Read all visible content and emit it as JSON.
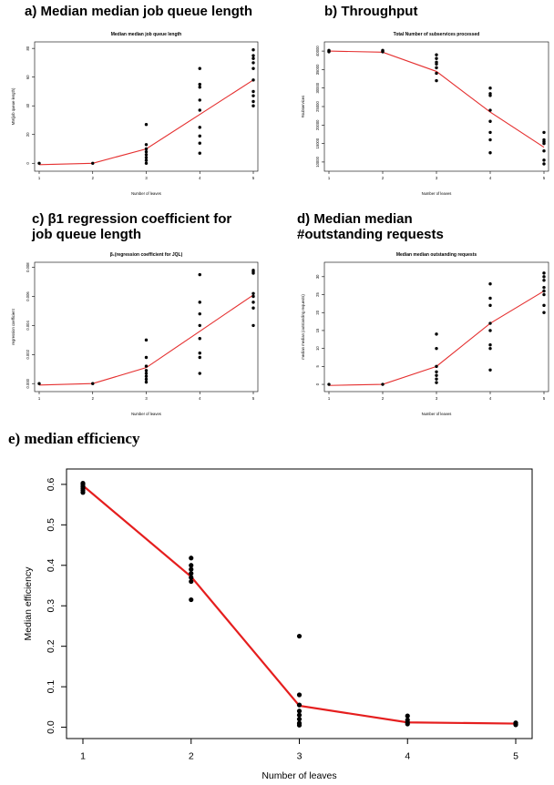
{
  "panel_headings": {
    "a": "a) Median median job queue length",
    "b": "b) Throughput",
    "c": "c) β1 regression coefficient for\njob queue length",
    "d": "d) Median median\n#outstanding requests",
    "e": "e) median efficiency"
  },
  "chart_data": [
    {
      "id": "a",
      "type": "scatter",
      "title": "Median median job queue length",
      "xlabel": "Number of leaves",
      "ylabel": "MM(job queue length)",
      "xlim": [
        1,
        5
      ],
      "ylim": [
        -3,
        82
      ],
      "xticks": [
        1,
        2,
        3,
        4,
        5
      ],
      "yticks": [
        0,
        20,
        40,
        60,
        80
      ],
      "points": [
        [
          1,
          0
        ],
        [
          2,
          0
        ],
        [
          3,
          0
        ],
        [
          3,
          2
        ],
        [
          3,
          4
        ],
        [
          3,
          6
        ],
        [
          3,
          8
        ],
        [
          3,
          10
        ],
        [
          3,
          13
        ],
        [
          3,
          27
        ],
        [
          4,
          7
        ],
        [
          4,
          14
        ],
        [
          4,
          19
        ],
        [
          4,
          25
        ],
        [
          4,
          37
        ],
        [
          4,
          44
        ],
        [
          4,
          53
        ],
        [
          4,
          55
        ],
        [
          4,
          66
        ],
        [
          5,
          40
        ],
        [
          5,
          43
        ],
        [
          5,
          47
        ],
        [
          5,
          50
        ],
        [
          5,
          58
        ],
        [
          5,
          66
        ],
        [
          5,
          70
        ],
        [
          5,
          73
        ],
        [
          5,
          75
        ],
        [
          5,
          79
        ]
      ],
      "fit_line": {
        "x": [
          1,
          2,
          3,
          4,
          5
        ],
        "y": [
          -1,
          0,
          10,
          34,
          58
        ]
      },
      "line_color": "#e53030"
    },
    {
      "id": "b",
      "type": "scatter",
      "title": "Total Number of subservices processed",
      "xlabel": "Number of leaves",
      "ylabel": "#subservices",
      "xlim": [
        1,
        5
      ],
      "ylim": [
        8500,
        41500
      ],
      "xticks": [
        1,
        2,
        3,
        4,
        5
      ],
      "yticks": [
        10000,
        15000,
        20000,
        25000,
        30000,
        35000,
        40000
      ],
      "points": [
        [
          1,
          39800
        ],
        [
          1,
          40000
        ],
        [
          1,
          40200
        ],
        [
          2,
          39800
        ],
        [
          2,
          40000
        ],
        [
          2,
          40200
        ],
        [
          3,
          32000
        ],
        [
          3,
          34000
        ],
        [
          3,
          35500
        ],
        [
          3,
          36500
        ],
        [
          3,
          37000
        ],
        [
          3,
          38000
        ],
        [
          3,
          39000
        ],
        [
          4,
          12500
        ],
        [
          4,
          16000
        ],
        [
          4,
          18000
        ],
        [
          4,
          21000
        ],
        [
          4,
          24000
        ],
        [
          4,
          28000
        ],
        [
          4,
          28500
        ],
        [
          4,
          30000
        ],
        [
          5,
          9500
        ],
        [
          5,
          10500
        ],
        [
          5,
          13000
        ],
        [
          5,
          15000
        ],
        [
          5,
          15500
        ],
        [
          5,
          16000
        ],
        [
          5,
          18000
        ]
      ],
      "fit_line": {
        "x": [
          1,
          2,
          3,
          4,
          5
        ],
        "y": [
          40000,
          39700,
          34500,
          23500,
          14000
        ]
      },
      "line_color": "#e53030"
    },
    {
      "id": "c",
      "type": "scatter",
      "title": "β₁(regression coefficient for JQL)",
      "xlabel": "Number of leaves",
      "ylabel": "regression coefficient",
      "xlim": [
        1,
        5
      ],
      "ylim": [
        -0.0003,
        0.0081
      ],
      "xticks": [
        1,
        2,
        3,
        4,
        5
      ],
      "yticks": [
        0.0,
        0.002,
        0.004,
        0.006,
        0.008
      ],
      "ytick_labels": [
        "0.000",
        "0.002",
        "0.004",
        "0.006",
        "0.008"
      ],
      "points": [
        [
          1,
          0.0
        ],
        [
          2,
          0.0
        ],
        [
          3,
          0.0001
        ],
        [
          3,
          0.0003
        ],
        [
          3,
          0.0005
        ],
        [
          3,
          0.0007
        ],
        [
          3,
          0.0009
        ],
        [
          3,
          0.0012
        ],
        [
          3,
          0.0018
        ],
        [
          3,
          0.003
        ],
        [
          4,
          0.0007
        ],
        [
          4,
          0.0018
        ],
        [
          4,
          0.0021
        ],
        [
          4,
          0.0031
        ],
        [
          4,
          0.004
        ],
        [
          4,
          0.0048
        ],
        [
          4,
          0.0056
        ],
        [
          4,
          0.0075
        ],
        [
          5,
          0.004
        ],
        [
          5,
          0.0052
        ],
        [
          5,
          0.0056
        ],
        [
          5,
          0.006
        ],
        [
          5,
          0.0062
        ],
        [
          5,
          0.0076
        ],
        [
          5,
          0.0077
        ],
        [
          5,
          0.0078
        ]
      ],
      "fit_line": {
        "x": [
          1,
          2,
          3,
          4,
          5
        ],
        "y": [
          -0.0001,
          0.0,
          0.0011,
          0.0036,
          0.0061
        ]
      },
      "line_color": "#e53030"
    },
    {
      "id": "d",
      "type": "scatter",
      "title": "Median median outstanding requests",
      "xlabel": "Number of leaves",
      "ylabel": "median median (outstanding requests)",
      "xlim": [
        1,
        5
      ],
      "ylim": [
        -1,
        33
      ],
      "xticks": [
        1,
        2,
        3,
        4,
        5
      ],
      "yticks": [
        0,
        5,
        10,
        15,
        20,
        25,
        30
      ],
      "points": [
        [
          1,
          0
        ],
        [
          2,
          0
        ],
        [
          3,
          0.5
        ],
        [
          3,
          1.5
        ],
        [
          3,
          2.5
        ],
        [
          3,
          3.5
        ],
        [
          3,
          5
        ],
        [
          3,
          10
        ],
        [
          3,
          14
        ],
        [
          4,
          4
        ],
        [
          4,
          10
        ],
        [
          4,
          11
        ],
        [
          4,
          15
        ],
        [
          4,
          17
        ],
        [
          4,
          22
        ],
        [
          4,
          24
        ],
        [
          4,
          28
        ],
        [
          5,
          20
        ],
        [
          5,
          22
        ],
        [
          5,
          25
        ],
        [
          5,
          26
        ],
        [
          5,
          27
        ],
        [
          5,
          29
        ],
        [
          5,
          30
        ],
        [
          5,
          31
        ]
      ],
      "fit_line": {
        "x": [
          1,
          2,
          3,
          4,
          5
        ],
        "y": [
          -0.3,
          0,
          5,
          17,
          26
        ]
      },
      "line_color": "#e53030"
    },
    {
      "id": "e",
      "type": "scatter",
      "title": "",
      "xlabel": "Number of leaves",
      "ylabel": "Median efficiency",
      "xlim": [
        1,
        5
      ],
      "ylim": [
        -0.01,
        0.62
      ],
      "xticks": [
        1,
        2,
        3,
        4,
        5
      ],
      "yticks": [
        0.0,
        0.1,
        0.2,
        0.3,
        0.4,
        0.5,
        0.6
      ],
      "ytick_labels": [
        "0.0",
        "0.1",
        "0.2",
        "0.3",
        "0.4",
        "0.5",
        "0.6"
      ],
      "points": [
        [
          1,
          0.58
        ],
        [
          1,
          0.585
        ],
        [
          1,
          0.59
        ],
        [
          1,
          0.595
        ],
        [
          1,
          0.6
        ],
        [
          1,
          0.603
        ],
        [
          2,
          0.315
        ],
        [
          2,
          0.36
        ],
        [
          2,
          0.37
        ],
        [
          2,
          0.38
        ],
        [
          2,
          0.39
        ],
        [
          2,
          0.4
        ],
        [
          2,
          0.418
        ],
        [
          3,
          0.005
        ],
        [
          3,
          0.01
        ],
        [
          3,
          0.02
        ],
        [
          3,
          0.03
        ],
        [
          3,
          0.04
        ],
        [
          3,
          0.055
        ],
        [
          3,
          0.08
        ],
        [
          3,
          0.225
        ],
        [
          4,
          0.008
        ],
        [
          4,
          0.012
        ],
        [
          4,
          0.018
        ],
        [
          4,
          0.028
        ],
        [
          5,
          0.006
        ],
        [
          5,
          0.008
        ],
        [
          5,
          0.011
        ]
      ],
      "fit_line": {
        "x": [
          1,
          2,
          3,
          4,
          5
        ],
        "y": [
          0.597,
          0.372,
          0.053,
          0.012,
          0.009
        ]
      },
      "line_color": "#e51e1e"
    }
  ]
}
